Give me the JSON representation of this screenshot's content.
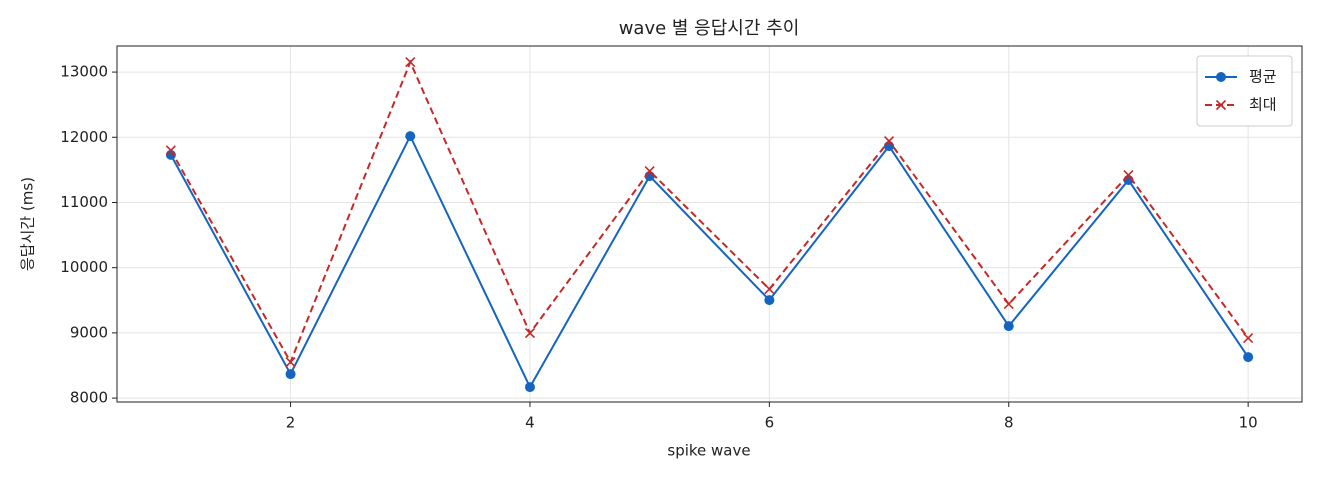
{
  "chart_data": {
    "type": "line",
    "title": "wave 별 응답시간 추이",
    "x_label": "spike wave",
    "y_label": "응답시간 (ms)",
    "x": [
      1,
      2,
      3,
      4,
      5,
      6,
      7,
      8,
      9,
      10
    ],
    "series": [
      {
        "name": "평균",
        "color": "#1565c0",
        "linestyle": "solid",
        "marker": "circle",
        "values": [
          11730,
          8368,
          12018,
          8169,
          11405,
          9503,
          11865,
          9104,
          11344,
          8629
        ]
      },
      {
        "name": "최대",
        "color": "#c62828",
        "linestyle": "dashed",
        "marker": "x",
        "values": [
          11800,
          8552,
          13153,
          8997,
          11482,
          9672,
          11942,
          9442,
          11420,
          8920
        ]
      }
    ],
    "xlim": [
      0.55,
      10.45
    ],
    "ylim": [
      7940,
      13400
    ],
    "xticks": [
      2,
      4,
      6,
      8,
      10
    ],
    "yticks": [
      8000,
      9000,
      10000,
      11000,
      12000,
      13000
    ],
    "grid": true,
    "legend": "upper right"
  }
}
